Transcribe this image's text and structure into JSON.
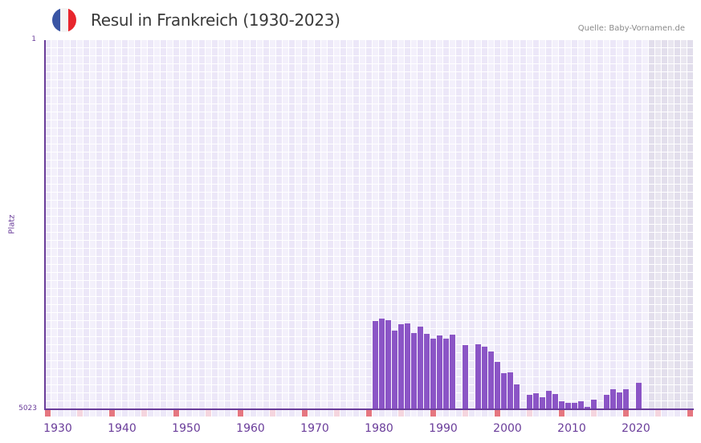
{
  "header": {
    "title": "Resul in Frankreich (1930-2023)",
    "source": "Quelle: Baby-Vornamen.de",
    "flag": {
      "country": "France",
      "colors": [
        "#3a55a4",
        "#f4f4f4",
        "#e8262d"
      ]
    }
  },
  "axes": {
    "y_title": "Platz",
    "y_top_label": "1",
    "y_bottom_label": "5023",
    "x_tick_labels": [
      "1930",
      "1940",
      "1950",
      "1960",
      "1970",
      "1980",
      "1990",
      "2000",
      "2010",
      "2020"
    ]
  },
  "colors": {
    "bar": "#8b55c6",
    "axis": "#6a3d9a",
    "grid_light": "#f3f0fb",
    "grid_dark": "#ece7f8",
    "future_light": "#e9e6f0",
    "future_dark": "#e2deec",
    "decade_marker": "#e57680",
    "half_decade_marker": "#f5d5de"
  },
  "chart_data": {
    "type": "bar",
    "title": "Resul in Frankreich (1930-2023)",
    "xlabel": "",
    "ylabel": "Platz",
    "y_inverted": true,
    "ylim": [
      5023,
      1
    ],
    "xlim": [
      1930,
      2030
    ],
    "shaded_future_from": 2024,
    "grid": true,
    "legend": null,
    "x": [
      1981,
      1982,
      1983,
      1984,
      1985,
      1986,
      1987,
      1988,
      1989,
      1990,
      1991,
      1992,
      1993,
      1995,
      1997,
      1998,
      1999,
      2000,
      2001,
      2002,
      2003,
      2005,
      2006,
      2007,
      2008,
      2009,
      2010,
      2011,
      2012,
      2013,
      2014,
      2015,
      2017,
      2018,
      2019,
      2020,
      2022
    ],
    "values": [
      3822,
      3789,
      3811,
      3953,
      3866,
      3855,
      3986,
      3899,
      3997,
      4062,
      4019,
      4062,
      4008,
      4150,
      4139,
      4171,
      4237,
      4379,
      4532,
      4521,
      4685,
      4826,
      4805,
      4859,
      4772,
      4815,
      4914,
      4935,
      4935,
      4914,
      4990,
      4892,
      4826,
      4750,
      4793,
      4750,
      4663
    ]
  }
}
